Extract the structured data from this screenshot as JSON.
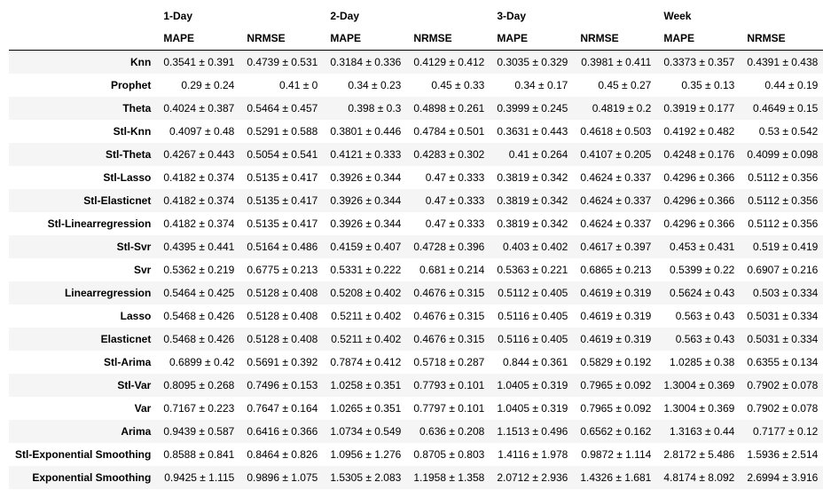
{
  "table": {
    "groups": [
      "1-Day",
      "2-Day",
      "3-Day",
      "Week"
    ],
    "metrics": [
      "MAPE",
      "NRMSE",
      "MAPE",
      "NRMSE",
      "MAPE",
      "NRMSE",
      "MAPE",
      "NRMSE"
    ],
    "rows": [
      {
        "label": "Knn",
        "cells": [
          "0.3541 ± 0.391",
          "0.4739 ± 0.531",
          "0.3184 ± 0.336",
          "0.4129 ± 0.412",
          "0.3035 ± 0.329",
          "0.3981 ± 0.411",
          "0.3373 ± 0.357",
          "0.4391 ± 0.438"
        ]
      },
      {
        "label": "Prophet",
        "cells": [
          "0.29 ± 0.24",
          "0.41 ± 0",
          "0.34 ± 0.23",
          "0.45 ± 0.33",
          "0.34 ± 0.17",
          "0.45 ± 0.27",
          "0.35 ± 0.13",
          "0.44 ± 0.19"
        ]
      },
      {
        "label": "Theta",
        "cells": [
          "0.4024 ± 0.387",
          "0.5464 ± 0.457",
          "0.398 ± 0.3",
          "0.4898 ± 0.261",
          "0.3999 ± 0.245",
          "0.4819 ± 0.2",
          "0.3919 ± 0.177",
          "0.4649 ± 0.15"
        ]
      },
      {
        "label": "Stl-Knn",
        "cells": [
          "0.4097 ± 0.48",
          "0.5291 ± 0.588",
          "0.3801 ± 0.446",
          "0.4784 ± 0.501",
          "0.3631 ± 0.443",
          "0.4618 ± 0.503",
          "0.4192 ± 0.482",
          "0.53 ± 0.542"
        ]
      },
      {
        "label": "Stl-Theta",
        "cells": [
          "0.4267 ± 0.443",
          "0.5054 ± 0.541",
          "0.4121 ± 0.333",
          "0.4283 ± 0.302",
          "0.41 ± 0.264",
          "0.4107 ± 0.205",
          "0.4248 ± 0.176",
          "0.4099 ± 0.098"
        ]
      },
      {
        "label": "Stl-Lasso",
        "cells": [
          "0.4182 ± 0.374",
          "0.5135 ± 0.417",
          "0.3926 ± 0.344",
          "0.47 ± 0.333",
          "0.3819 ± 0.342",
          "0.4624 ± 0.337",
          "0.4296 ± 0.366",
          "0.5112 ± 0.356"
        ]
      },
      {
        "label": "Stl-Elasticnet",
        "cells": [
          "0.4182 ± 0.374",
          "0.5135 ± 0.417",
          "0.3926 ± 0.344",
          "0.47 ± 0.333",
          "0.3819 ± 0.342",
          "0.4624 ± 0.337",
          "0.4296 ± 0.366",
          "0.5112 ± 0.356"
        ]
      },
      {
        "label": "Stl-Linearregression",
        "cells": [
          "0.4182 ± 0.374",
          "0.5135 ± 0.417",
          "0.3926 ± 0.344",
          "0.47 ± 0.333",
          "0.3819 ± 0.342",
          "0.4624 ± 0.337",
          "0.4296 ± 0.366",
          "0.5112 ± 0.356"
        ]
      },
      {
        "label": "Stl-Svr",
        "cells": [
          "0.4395 ± 0.441",
          "0.5164 ± 0.486",
          "0.4159 ± 0.407",
          "0.4728 ± 0.396",
          "0.403 ± 0.402",
          "0.4617 ± 0.397",
          "0.453 ± 0.431",
          "0.519 ± 0.419"
        ]
      },
      {
        "label": "Svr",
        "cells": [
          "0.5362 ± 0.219",
          "0.6775 ± 0.213",
          "0.5331 ± 0.222",
          "0.681 ± 0.214",
          "0.5363 ± 0.221",
          "0.6865 ± 0.213",
          "0.5399 ± 0.22",
          "0.6907 ± 0.216"
        ]
      },
      {
        "label": "Linearregression",
        "cells": [
          "0.5464 ± 0.425",
          "0.5128 ± 0.408",
          "0.5208 ± 0.402",
          "0.4676 ± 0.315",
          "0.5112 ± 0.405",
          "0.4619 ± 0.319",
          "0.5624 ± 0.43",
          "0.503 ± 0.334"
        ]
      },
      {
        "label": "Lasso",
        "cells": [
          "0.5468 ± 0.426",
          "0.5128 ± 0.408",
          "0.5211 ± 0.402",
          "0.4676 ± 0.315",
          "0.5116 ± 0.405",
          "0.4619 ± 0.319",
          "0.563 ± 0.43",
          "0.5031 ± 0.334"
        ]
      },
      {
        "label": "Elasticnet",
        "cells": [
          "0.5468 ± 0.426",
          "0.5128 ± 0.408",
          "0.5211 ± 0.402",
          "0.4676 ± 0.315",
          "0.5116 ± 0.405",
          "0.4619 ± 0.319",
          "0.563 ± 0.43",
          "0.5031 ± 0.334"
        ]
      },
      {
        "label": "Stl-Arima",
        "cells": [
          "0.6899 ± 0.42",
          "0.5691 ± 0.392",
          "0.7874 ± 0.412",
          "0.5718 ± 0.287",
          "0.844 ± 0.361",
          "0.5829 ± 0.192",
          "1.0285 ± 0.38",
          "0.6355 ± 0.134"
        ]
      },
      {
        "label": "Stl-Var",
        "cells": [
          "0.8095 ± 0.268",
          "0.7496 ± 0.153",
          "1.0258 ± 0.351",
          "0.7793 ± 0.101",
          "1.0405 ± 0.319",
          "0.7965 ± 0.092",
          "1.3004 ± 0.369",
          "0.7902 ± 0.078"
        ]
      },
      {
        "label": "Var",
        "cells": [
          "0.7167 ± 0.223",
          "0.7647 ± 0.164",
          "1.0265 ± 0.351",
          "0.7797 ± 0.101",
          "1.0405 ± 0.319",
          "0.7965 ± 0.092",
          "1.3004 ± 0.369",
          "0.7902 ± 0.078"
        ]
      },
      {
        "label": "Arima",
        "cells": [
          "0.9439 ± 0.587",
          "0.6416 ± 0.366",
          "1.0734 ± 0.549",
          "0.636 ± 0.208",
          "1.1513 ± 0.496",
          "0.6562 ± 0.162",
          "1.3163 ± 0.44",
          "0.7177 ± 0.12"
        ]
      },
      {
        "label": "Stl-Exponential Smoothing",
        "cells": [
          "0.8588 ± 0.841",
          "0.8464 ± 0.826",
          "1.0956 ± 1.276",
          "0.8705 ± 0.803",
          "1.4116 ± 1.978",
          "0.9872 ± 1.114",
          "2.8172 ± 5.486",
          "1.5936 ± 2.514"
        ]
      },
      {
        "label": "Exponential Smoothing",
        "cells": [
          "0.9425 ± 1.115",
          "0.9896 ± 1.075",
          "1.5305 ± 2.083",
          "1.1958 ± 1.358",
          "2.0712 ± 2.936",
          "1.4326 ± 1.681",
          "4.8174 ± 8.092",
          "2.6994 ± 3.916"
        ]
      }
    ]
  }
}
